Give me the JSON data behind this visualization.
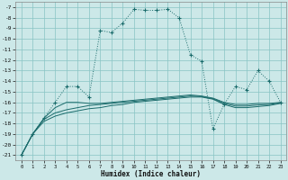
{
  "xlabel": "Humidex (Indice chaleur)",
  "bg_color": "#cce8e8",
  "grid_color": "#88c4c4",
  "line_color": "#1a6b6b",
  "xlim": [
    -0.5,
    23.5
  ],
  "ylim": [
    -21.5,
    -6.5
  ],
  "yticks": [
    -21,
    -20,
    -19,
    -18,
    -17,
    -16,
    -15,
    -14,
    -13,
    -12,
    -11,
    -10,
    -9,
    -8,
    -7
  ],
  "xticks": [
    0,
    1,
    2,
    3,
    4,
    5,
    6,
    7,
    8,
    9,
    10,
    11,
    12,
    13,
    14,
    15,
    16,
    17,
    18,
    19,
    20,
    21,
    22,
    23
  ],
  "main_x": [
    0,
    1,
    2,
    3,
    4,
    5,
    6,
    7,
    8,
    9,
    10,
    11,
    12,
    13,
    14,
    15,
    16,
    17,
    18,
    19,
    20,
    21,
    22,
    23
  ],
  "main_y": [
    -21,
    -19,
    -17.5,
    -16,
    -14.5,
    -14.5,
    -15.5,
    -9.2,
    -9.4,
    -8.5,
    -7.2,
    -7.3,
    -7.3,
    -7.2,
    -8.0,
    -11.5,
    -12.1,
    -18.5,
    -16.2,
    -14.5,
    -14.8,
    -13.0,
    -14.0,
    -16.0
  ],
  "line2_x": [
    0,
    1,
    2,
    3,
    4,
    5,
    6,
    7,
    8,
    9,
    10,
    11,
    12,
    13,
    14,
    15,
    16,
    17,
    18,
    19,
    20,
    21,
    22,
    23
  ],
  "line2_y": [
    -21,
    -19,
    -17.5,
    -16.5,
    -16.0,
    -16.0,
    -16.1,
    -16.1,
    -16.0,
    -15.9,
    -15.8,
    -15.7,
    -15.6,
    -15.5,
    -15.4,
    -15.3,
    -15.4,
    -15.6,
    -16.0,
    -16.2,
    -16.2,
    -16.1,
    -16.1,
    -16.0
  ],
  "line3_x": [
    0,
    1,
    2,
    3,
    4,
    5,
    6,
    7,
    8,
    9,
    10,
    11,
    12,
    13,
    14,
    15,
    16,
    17,
    18,
    19,
    20,
    21,
    22,
    23
  ],
  "line3_y": [
    -21,
    -19,
    -17.8,
    -17.3,
    -17.0,
    -16.8,
    -16.6,
    -16.5,
    -16.3,
    -16.2,
    -16.0,
    -15.9,
    -15.8,
    -15.7,
    -15.6,
    -15.5,
    -15.5,
    -15.7,
    -16.2,
    -16.5,
    -16.5,
    -16.4,
    -16.3,
    -16.1
  ],
  "line4_x": [
    0,
    1,
    2,
    3,
    4,
    5,
    6,
    7,
    8,
    9,
    10,
    11,
    12,
    13,
    14,
    15,
    16,
    17,
    18,
    19,
    20,
    21,
    22,
    23
  ],
  "line4_y": [
    -21,
    -19,
    -17.6,
    -17.0,
    -16.7,
    -16.5,
    -16.3,
    -16.2,
    -16.1,
    -16.0,
    -15.9,
    -15.8,
    -15.7,
    -15.6,
    -15.5,
    -15.4,
    -15.45,
    -15.65,
    -16.1,
    -16.35,
    -16.35,
    -16.25,
    -16.2,
    -16.05
  ]
}
